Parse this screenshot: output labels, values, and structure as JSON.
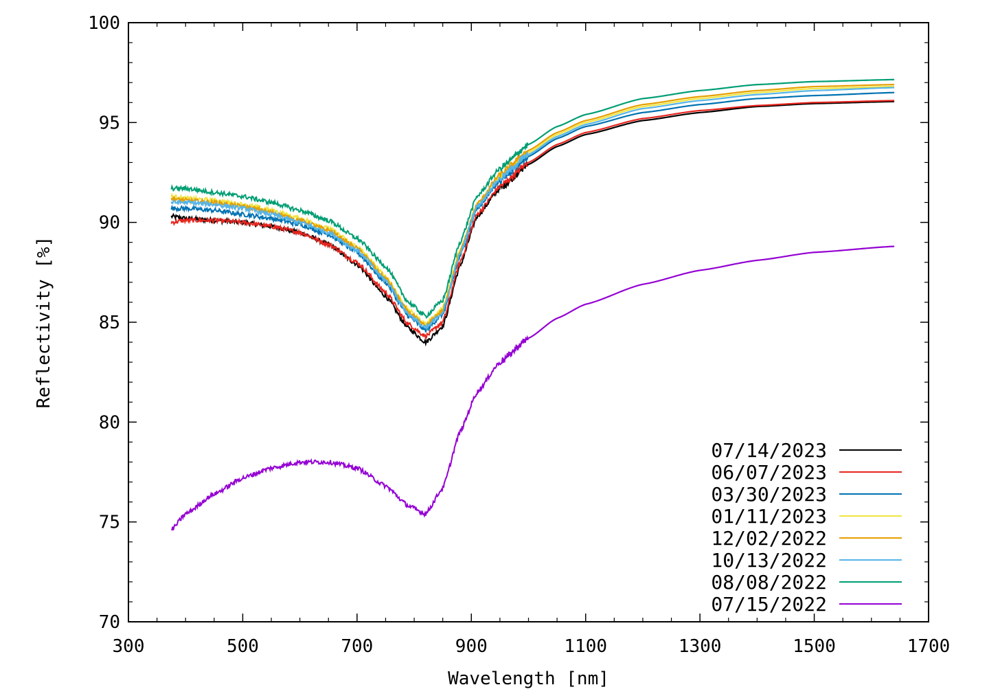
{
  "chart_data": {
    "type": "line",
    "title": "",
    "xlabel": "Wavelength [nm]",
    "ylabel": "Reflectivity [%]",
    "xlim": [
      300,
      1700
    ],
    "ylim": [
      70,
      100
    ],
    "xticks": [
      "300",
      "500",
      "700",
      "900",
      "1100",
      "1300",
      "1500",
      "1700"
    ],
    "yticks": [
      "70",
      "75",
      "80",
      "85",
      "90",
      "95",
      "100"
    ],
    "grid": false,
    "legend_position": "bottom-right",
    "series": [
      {
        "name": "07/14/2023",
        "color": "#000000",
        "x": [
          375,
          400,
          450,
          500,
          550,
          600,
          650,
          700,
          750,
          790,
          820,
          850,
          880,
          910,
          950,
          1000,
          1050,
          1100,
          1200,
          1300,
          1400,
          1500,
          1640
        ],
        "y": [
          90.3,
          90.2,
          90.1,
          90.0,
          89.8,
          89.5,
          88.9,
          87.9,
          86.3,
          84.7,
          84.0,
          84.8,
          87.8,
          90.3,
          91.7,
          92.9,
          93.8,
          94.4,
          95.1,
          95.5,
          95.8,
          95.95,
          96.05
        ]
      },
      {
        "name": "06/07/2023",
        "color": "#e6261f",
        "x": [
          375,
          400,
          450,
          500,
          550,
          600,
          650,
          700,
          750,
          790,
          820,
          850,
          880,
          910,
          950,
          1000,
          1050,
          1100,
          1200,
          1300,
          1400,
          1500,
          1640
        ],
        "y": [
          90.0,
          90.1,
          90.1,
          90.0,
          89.8,
          89.5,
          88.9,
          88.0,
          86.5,
          84.9,
          84.3,
          85.0,
          88.0,
          90.4,
          91.8,
          93.0,
          93.9,
          94.5,
          95.2,
          95.6,
          95.85,
          96.0,
          96.1
        ]
      },
      {
        "name": "03/30/2023",
        "color": "#0072b2",
        "x": [
          375,
          400,
          450,
          500,
          550,
          600,
          650,
          700,
          750,
          790,
          820,
          850,
          880,
          910,
          950,
          1000,
          1050,
          1100,
          1200,
          1300,
          1400,
          1500,
          1640
        ],
        "y": [
          90.7,
          90.7,
          90.6,
          90.4,
          90.2,
          89.9,
          89.4,
          88.5,
          87.0,
          85.3,
          84.6,
          85.4,
          88.3,
          90.7,
          92.1,
          93.3,
          94.2,
          94.8,
          95.5,
          95.9,
          96.2,
          96.35,
          96.5
        ]
      },
      {
        "name": "01/11/2023",
        "color": "#f0e442",
        "x": [
          375,
          400,
          450,
          500,
          550,
          600,
          650,
          700,
          750,
          790,
          820,
          850,
          880,
          910,
          950,
          1000,
          1050,
          1100,
          1200,
          1300,
          1400,
          1500,
          1640
        ],
        "y": [
          91.3,
          91.2,
          91.1,
          90.9,
          90.6,
          90.2,
          89.7,
          88.8,
          87.3,
          85.6,
          84.9,
          85.7,
          88.6,
          90.9,
          92.3,
          93.5,
          94.4,
          95.0,
          95.8,
          96.2,
          96.5,
          96.7,
          96.8
        ]
      },
      {
        "name": "12/02/2022",
        "color": "#e69f00",
        "x": [
          375,
          400,
          450,
          500,
          550,
          600,
          650,
          700,
          750,
          790,
          820,
          850,
          880,
          910,
          950,
          1000,
          1050,
          1100,
          1200,
          1300,
          1400,
          1500,
          1640
        ],
        "y": [
          91.2,
          91.1,
          91.0,
          90.8,
          90.5,
          90.1,
          89.6,
          88.7,
          87.2,
          85.5,
          84.8,
          85.6,
          88.5,
          90.9,
          92.4,
          93.6,
          94.5,
          95.1,
          95.9,
          96.3,
          96.6,
          96.8,
          96.9
        ]
      },
      {
        "name": "10/13/2022",
        "color": "#56b4e9",
        "x": [
          375,
          400,
          450,
          500,
          550,
          600,
          650,
          700,
          750,
          790,
          820,
          850,
          880,
          910,
          950,
          1000,
          1050,
          1100,
          1200,
          1300,
          1400,
          1500,
          1640
        ],
        "y": [
          91.0,
          91.0,
          90.9,
          90.7,
          90.4,
          90.0,
          89.5,
          88.6,
          87.1,
          85.4,
          84.7,
          85.5,
          88.4,
          90.8,
          92.2,
          93.4,
          94.3,
          94.9,
          95.7,
          96.1,
          96.4,
          96.6,
          96.75
        ]
      },
      {
        "name": "08/08/2022",
        "color": "#009e73",
        "x": [
          375,
          400,
          450,
          500,
          550,
          600,
          650,
          700,
          750,
          790,
          820,
          850,
          880,
          910,
          950,
          1000,
          1050,
          1100,
          1200,
          1300,
          1400,
          1500,
          1640
        ],
        "y": [
          91.7,
          91.7,
          91.5,
          91.3,
          91.0,
          90.6,
          90.1,
          89.2,
          87.8,
          86.0,
          85.3,
          86.1,
          89.0,
          91.3,
          92.7,
          93.9,
          94.8,
          95.4,
          96.2,
          96.6,
          96.9,
          97.05,
          97.15
        ]
      },
      {
        "name": "07/15/2022",
        "color": "#9400d3",
        "x": [
          375,
          400,
          450,
          500,
          550,
          600,
          650,
          700,
          750,
          790,
          820,
          850,
          880,
          910,
          950,
          1000,
          1050,
          1100,
          1200,
          1300,
          1400,
          1500,
          1640
        ],
        "y": [
          74.6,
          75.4,
          76.4,
          77.2,
          77.7,
          78.0,
          78.0,
          77.7,
          76.8,
          75.8,
          75.4,
          76.7,
          79.5,
          81.5,
          83.0,
          84.2,
          85.2,
          85.9,
          86.9,
          87.6,
          88.1,
          88.5,
          88.8
        ]
      }
    ]
  }
}
